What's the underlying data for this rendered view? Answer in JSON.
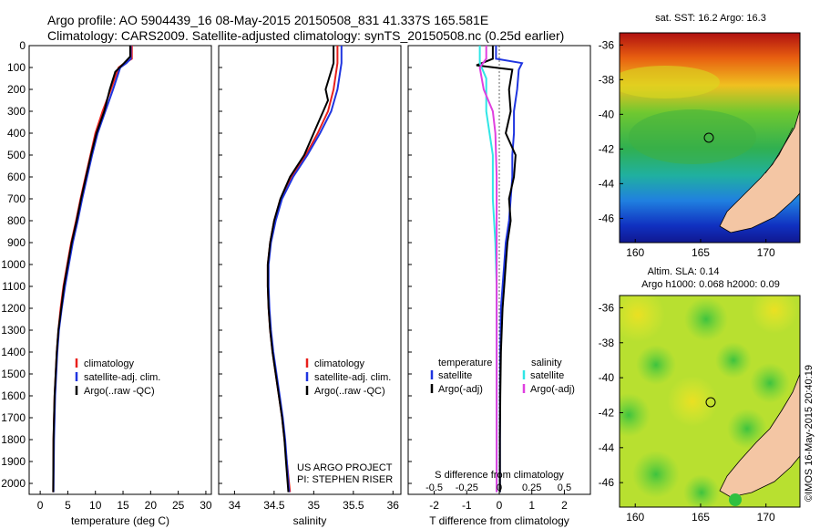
{
  "title_line1": "Argo profile: AO 5904439_16 08-May-2015 20150508_831 41.337S 165.581E",
  "title_line2": "Climatology: CARS2009. Satellite-adjusted climatology: synTS_20150508.nc (0.25d earlier)",
  "watermark": "©IMOS 16-May-2015 20:40:19",
  "colors": {
    "clim": "#e8201c",
    "sat": "#1f35e0",
    "argo": "#000000",
    "sal_sat": "#30e6e6",
    "sal_argo": "#e040e0",
    "land": "#f4c6a4"
  },
  "chart_data": [
    {
      "type": "line",
      "id": "temperature",
      "xlabel": "temperature (deg C)",
      "xlim": [
        -2,
        31
      ],
      "ylim": [
        2050,
        0
      ],
      "xticks": [
        "0",
        "5",
        "10",
        "15",
        "20",
        "25",
        "30"
      ],
      "yticks": [
        "0",
        "100",
        "200",
        "300",
        "400",
        "500",
        "600",
        "700",
        "800",
        "900",
        "1000",
        "1100",
        "1200",
        "1300",
        "1400",
        "1500",
        "1600",
        "1700",
        "1800",
        "1900",
        "2000"
      ],
      "legend": [
        "climatology",
        "satellite-adj. clim.",
        "Argo(..raw -QC)"
      ],
      "series": [
        {
          "name": "climatology",
          "color": "#e8201c",
          "x": [
            16.6,
            16.6,
            15.3,
            14.2,
            12.8,
            11.3,
            10,
            9.1,
            8.2,
            7.3,
            6.5,
            5.6,
            4.9,
            4.2,
            3.7,
            3.3,
            3,
            2.8,
            2.6,
            2.5,
            2.4,
            2.35
          ],
          "y": [
            0,
            60,
            80,
            100,
            200,
            300,
            400,
            500,
            600,
            700,
            800,
            900,
            1000,
            1100,
            1200,
            1300,
            1400,
            1500,
            1600,
            1700,
            1800,
            2040
          ]
        },
        {
          "name": "satellite-adj. clim.",
          "color": "#1f35e0",
          "x": [
            16.4,
            16.4,
            15.6,
            14.5,
            13.2,
            11.8,
            10.4,
            9.4,
            8.5,
            7.6,
            6.8,
            5.9,
            5.2,
            4.5,
            3.9,
            3.4,
            3.1,
            2.9,
            2.7,
            2.6,
            2.5,
            2.4
          ],
          "y": [
            0,
            60,
            80,
            100,
            200,
            300,
            400,
            500,
            600,
            700,
            800,
            900,
            1000,
            1100,
            1200,
            1300,
            1400,
            1500,
            1600,
            1700,
            1800,
            2040
          ]
        },
        {
          "name": "Argo(..raw -QC)",
          "color": "#000000",
          "x": [
            16.3,
            16.3,
            15.2,
            13.6,
            12.6,
            11.6,
            10.2,
            9.2,
            8.3,
            7.4,
            6.6,
            5.7,
            5,
            4.3,
            3.8,
            3.3,
            3,
            2.8,
            2.6,
            2.5,
            2.4,
            2.35
          ],
          "y": [
            0,
            50,
            80,
            120,
            200,
            300,
            400,
            500,
            600,
            700,
            800,
            900,
            1000,
            1100,
            1200,
            1300,
            1400,
            1500,
            1600,
            1700,
            1800,
            2040
          ]
        }
      ]
    },
    {
      "type": "line",
      "id": "salinity",
      "xlabel": "salinity",
      "xlim": [
        33.8,
        36.1
      ],
      "ylim": [
        2050,
        0
      ],
      "xticks": [
        "34",
        "34.5",
        "35",
        "35.5",
        "36"
      ],
      "legend": [
        "climatology",
        "satellite-adj. clim.",
        "Argo(..raw -QC)"
      ],
      "series": [
        {
          "name": "climatology",
          "color": "#e8201c",
          "x": [
            35.3,
            35.3,
            35.25,
            35.18,
            35.05,
            34.9,
            34.72,
            34.58,
            34.5,
            34.45,
            34.42,
            34.42,
            34.43,
            34.45,
            34.48,
            34.52,
            34.56,
            34.6,
            34.63,
            34.66,
            34.7
          ],
          "y": [
            0,
            80,
            200,
            300,
            400,
            500,
            600,
            700,
            800,
            900,
            1000,
            1100,
            1200,
            1300,
            1400,
            1500,
            1600,
            1700,
            1800,
            1900,
            2040
          ]
        },
        {
          "name": "satellite-adj. clim.",
          "color": "#1f35e0",
          "x": [
            35.35,
            35.35,
            35.3,
            35.22,
            35.08,
            34.92,
            34.74,
            34.6,
            34.52,
            34.46,
            34.43,
            34.43,
            34.44,
            34.46,
            34.49,
            34.53,
            34.57,
            34.61,
            34.64,
            34.66,
            34.69
          ],
          "y": [
            0,
            80,
            200,
            300,
            400,
            500,
            600,
            700,
            800,
            900,
            1000,
            1100,
            1200,
            1300,
            1400,
            1500,
            1600,
            1700,
            1800,
            1900,
            2040
          ]
        },
        {
          "name": "Argo(..raw -QC)",
          "color": "#000000",
          "x": [
            35.25,
            35.25,
            35.15,
            35.18,
            35.0,
            34.88,
            34.7,
            34.58,
            34.5,
            34.45,
            34.42,
            34.42,
            34.43,
            34.45,
            34.48,
            34.52,
            34.56,
            34.6,
            34.63,
            34.65,
            34.68
          ],
          "y": [
            0,
            80,
            200,
            250,
            400,
            500,
            600,
            700,
            800,
            900,
            1000,
            1100,
            1200,
            1300,
            1400,
            1500,
            1600,
            1700,
            1800,
            1900,
            2040
          ]
        }
      ],
      "footnote1": "US ARGO PROJECT",
      "footnote2": "PI: STEPHEN RISER"
    },
    {
      "type": "line",
      "id": "difference",
      "xlabel": "T difference from climatology",
      "xlabel_top": "S difference from climatology",
      "xlim": [
        -2.8,
        2.8
      ],
      "ylim": [
        2050,
        0
      ],
      "xticks": [
        "-2",
        "-1",
        "0",
        "1",
        "2"
      ],
      "xticks_top": [
        "-0.5",
        "-0.25",
        "0",
        "0.25",
        "0.5"
      ],
      "legend_t_title": "temperature",
      "legend_s_title": "salinity",
      "legend": [
        "satellite",
        "Argo(-adj)",
        "satellite",
        "Argo(-adj)"
      ],
      "series": [
        {
          "name": "T satellite",
          "color": "#1f35e0",
          "x": [
            -0.1,
            -0.1,
            0.7,
            0.6,
            0.55,
            0.45,
            0.45,
            0.4,
            0.4,
            0.35,
            0.3,
            0.2,
            0.15,
            0.1,
            0.05,
            0.03,
            0.02,
            0.02,
            0.02
          ],
          "y": [
            0,
            60,
            80,
            110,
            200,
            300,
            400,
            500,
            600,
            700,
            800,
            900,
            1000,
            1100,
            1200,
            1400,
            1600,
            1800,
            2040
          ]
        },
        {
          "name": "T Argo(-adj)",
          "color": "#000000",
          "x": [
            -0.2,
            -0.2,
            -0.7,
            0.4,
            0.3,
            0.35,
            0.2,
            0.5,
            0.45,
            0.3,
            0.35,
            0.25,
            0.2,
            0.15,
            0.1,
            0.05,
            0.03,
            0.02,
            0.02
          ],
          "y": [
            0,
            60,
            90,
            110,
            200,
            300,
            400,
            500,
            600,
            700,
            800,
            900,
            1000,
            1100,
            1200,
            1400,
            1600,
            1800,
            2040
          ]
        },
        {
          "name": "S satellite",
          "color": "#30e6e6",
          "x": [
            -0.15,
            -0.15,
            -0.1,
            -0.1,
            -0.05,
            -0.05,
            -0.03,
            -0.02,
            -0.02,
            -0.02,
            -0.02,
            -0.02
          ],
          "y": [
            0,
            80,
            150,
            300,
            500,
            700,
            900,
            1100,
            1300,
            1500,
            1800,
            2040
          ]
        },
        {
          "name": "S Argo(-adj)",
          "color": "#e040e0",
          "x": [
            -0.1,
            -0.1,
            -0.15,
            -0.12,
            -0.05,
            -0.03,
            -0.02,
            -0.02
          ],
          "y": [
            0,
            60,
            100,
            200,
            300,
            400,
            600,
            2040
          ]
        }
      ]
    },
    {
      "type": "heatmap",
      "id": "sst_map",
      "title": "sat. SST: 16.2 Argo: 16.3",
      "xticks": [
        "160",
        "165",
        "170"
      ],
      "yticks": [
        "-36",
        "-38",
        "-40",
        "-42",
        "-44",
        "-46"
      ]
    },
    {
      "type": "heatmap",
      "id": "sla_map",
      "title1": "Altim. SLA: 0.14",
      "title2": "Argo h1000: 0.068 h2000: 0.09",
      "xticks": [
        "160",
        "165",
        "170"
      ],
      "yticks": [
        "-36",
        "-38",
        "-40",
        "-42",
        "-44",
        "-46"
      ]
    }
  ]
}
